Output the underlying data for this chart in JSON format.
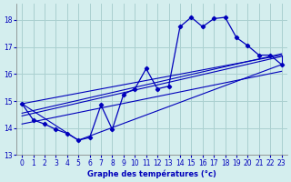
{
  "xlabel": "Graphe des températures (°c)",
  "background_color": "#d4eeee",
  "grid_color": "#aad0d0",
  "line_color": "#0000bb",
  "xlim": [
    -0.5,
    23.5
  ],
  "ylim": [
    13.0,
    18.6
  ],
  "yticks": [
    13,
    14,
    15,
    16,
    17,
    18
  ],
  "xticks": [
    0,
    1,
    2,
    3,
    4,
    5,
    6,
    7,
    8,
    9,
    10,
    11,
    12,
    13,
    14,
    15,
    16,
    17,
    18,
    19,
    20,
    21,
    22,
    23
  ],
  "main_x": [
    0,
    1,
    2,
    3,
    4,
    5,
    6,
    7,
    8,
    9,
    10,
    11,
    12,
    13,
    14,
    15,
    16,
    17,
    18,
    19,
    20,
    21,
    22,
    23
  ],
  "main_y": [
    14.9,
    14.3,
    14.15,
    13.95,
    13.8,
    13.55,
    13.65,
    14.85,
    13.95,
    15.25,
    15.45,
    16.2,
    15.45,
    15.55,
    17.75,
    18.1,
    17.75,
    18.05,
    18.1,
    17.35,
    17.05,
    16.7,
    16.7,
    16.35
  ],
  "reg_line1_x": [
    0,
    23
  ],
  "reg_line1_y": [
    14.55,
    16.75
  ],
  "reg_line2_x": [
    0,
    23
  ],
  "reg_line2_y": [
    14.45,
    16.65
  ],
  "reg_line3_x": [
    0,
    23
  ],
  "reg_line3_y": [
    14.15,
    16.1
  ],
  "env_x": [
    0,
    5,
    23,
    23,
    0
  ],
  "env_y": [
    14.9,
    13.55,
    16.7,
    16.35,
    14.9
  ]
}
